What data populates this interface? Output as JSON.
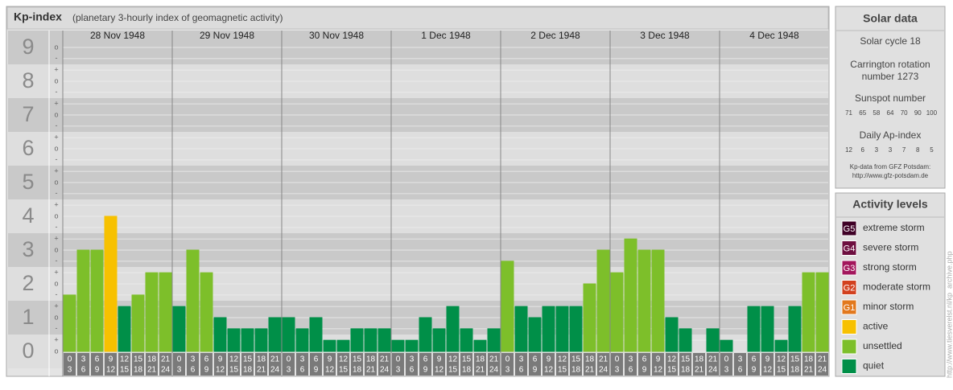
{
  "header": {
    "title": "Kp-index",
    "subtitle": "(planetary 3-hourly index of geomagnetic activity)"
  },
  "chart_data": {
    "type": "bar",
    "ylim": [
      -0.5,
      9.5
    ],
    "yticks": [
      0,
      1,
      2,
      3,
      4,
      5,
      6,
      7,
      8,
      9
    ],
    "yminorticks": [
      {
        "value": 0,
        "label": "o"
      },
      {
        "value": 0.33,
        "label": "+"
      },
      {
        "value": 0.67,
        "label": "-"
      },
      {
        "value": 1,
        "label": "o"
      },
      {
        "value": 1.33,
        "label": "+"
      },
      {
        "value": 1.67,
        "label": "-"
      },
      {
        "value": 2,
        "label": "o"
      },
      {
        "value": 2.33,
        "label": "+"
      },
      {
        "value": 2.67,
        "label": "-"
      },
      {
        "value": 3,
        "label": "o"
      },
      {
        "value": 3.33,
        "label": "+"
      },
      {
        "value": 3.67,
        "label": "-"
      },
      {
        "value": 4,
        "label": "o"
      },
      {
        "value": 4.33,
        "label": "+"
      },
      {
        "value": 4.67,
        "label": "-"
      },
      {
        "value": 5,
        "label": "o"
      },
      {
        "value": 5.33,
        "label": "+"
      },
      {
        "value": 5.67,
        "label": "-"
      },
      {
        "value": 6,
        "label": "o"
      },
      {
        "value": 6.33,
        "label": "+"
      },
      {
        "value": 6.67,
        "label": "-"
      },
      {
        "value": 7,
        "label": "o"
      },
      {
        "value": 7.33,
        "label": "+"
      },
      {
        "value": 7.67,
        "label": "-"
      },
      {
        "value": 8,
        "label": "o"
      },
      {
        "value": 8.33,
        "label": "+"
      },
      {
        "value": 8.67,
        "label": "-"
      },
      {
        "value": 9,
        "label": "o"
      }
    ],
    "hours": [
      [
        "0",
        "3"
      ],
      [
        "3",
        "6"
      ],
      [
        "6",
        "9"
      ],
      [
        "9",
        "12"
      ],
      [
        "12",
        "15"
      ],
      [
        "15",
        "18"
      ],
      [
        "18",
        "21"
      ],
      [
        "21",
        "24"
      ]
    ],
    "series": [
      {
        "name": "28 Nov 1948",
        "values": [
          1.67,
          3,
          3,
          4,
          1.33,
          1.67,
          2.33,
          2.33
        ],
        "colors": [
          "#7dbf2a",
          "#7dbf2a",
          "#7dbf2a",
          "#f7c100",
          "#008f48",
          "#7dbf2a",
          "#7dbf2a",
          "#7dbf2a"
        ]
      },
      {
        "name": "29 Nov 1948",
        "values": [
          1.33,
          3,
          2.33,
          1,
          0.67,
          0.67,
          0.67,
          1
        ],
        "colors": [
          "#008f48",
          "#7dbf2a",
          "#7dbf2a",
          "#008f48",
          "#008f48",
          "#008f48",
          "#008f48",
          "#008f48"
        ]
      },
      {
        "name": "30 Nov 1948",
        "values": [
          1,
          0.67,
          1,
          0.33,
          0.33,
          0.67,
          0.67,
          0.67
        ],
        "colors": [
          "#008f48",
          "#008f48",
          "#008f48",
          "#008f48",
          "#008f48",
          "#008f48",
          "#008f48",
          "#008f48"
        ]
      },
      {
        "name": "1 Dec 1948",
        "values": [
          0.33,
          0.33,
          1,
          0.67,
          1.33,
          0.67,
          0.33,
          0.67
        ],
        "colors": [
          "#008f48",
          "#008f48",
          "#008f48",
          "#008f48",
          "#008f48",
          "#008f48",
          "#008f48",
          "#008f48"
        ]
      },
      {
        "name": "2 Dec 1948",
        "values": [
          2.67,
          1.33,
          1,
          1.33,
          1.33,
          1.33,
          2,
          3
        ],
        "colors": [
          "#7dbf2a",
          "#008f48",
          "#008f48",
          "#008f48",
          "#008f48",
          "#008f48",
          "#7dbf2a",
          "#7dbf2a"
        ]
      },
      {
        "name": "3 Dec 1948",
        "values": [
          2.33,
          3.33,
          3,
          3,
          1,
          0.67,
          0,
          0.67
        ],
        "colors": [
          "#7dbf2a",
          "#7dbf2a",
          "#7dbf2a",
          "#7dbf2a",
          "#008f48",
          "#008f48",
          "#008f48",
          "#008f48"
        ]
      },
      {
        "name": "4 Dec 1948",
        "values": [
          0.33,
          0,
          1.33,
          1.33,
          0.33,
          1.33,
          2.33,
          2.33
        ],
        "colors": [
          "#008f48",
          "#008f48",
          "#008f48",
          "#008f48",
          "#008f48",
          "#008f48",
          "#7dbf2a",
          "#7dbf2a"
        ]
      }
    ]
  },
  "solar_data": {
    "title": "Solar data",
    "solar_cycle": "Solar cycle 18",
    "carrington": [
      "Carrington rotation",
      "number 1273"
    ],
    "sunspot_title": "Sunspot number",
    "sunspot_numbers": [
      71,
      65,
      58,
      64,
      70,
      90,
      100
    ],
    "ap_title": "Daily Ap-index",
    "ap_values": [
      12,
      6,
      3,
      3,
      7,
      8,
      5
    ],
    "source": [
      "Kp-data from GFZ Potsdam:",
      "http://www.gfz-potsdam.de"
    ]
  },
  "activity_levels": {
    "title": "Activity levels",
    "items": [
      {
        "badge": "G5",
        "label": "extreme storm",
        "color": "#3f0026"
      },
      {
        "badge": "G4",
        "label": "severe storm",
        "color": "#6e0f40"
      },
      {
        "badge": "G3",
        "label": "strong storm",
        "color": "#a3165c"
      },
      {
        "badge": "G2",
        "label": "moderate storm",
        "color": "#d2401e"
      },
      {
        "badge": "G1",
        "label": "minor storm",
        "color": "#e2781c"
      },
      {
        "badge": null,
        "label": "active",
        "color": "#f7c100"
      },
      {
        "badge": null,
        "label": "unsettled",
        "color": "#7dbf2a"
      },
      {
        "badge": null,
        "label": "quiet",
        "color": "#008f48"
      }
    ]
  },
  "credit": "http://www.tiesverelst.nl/kp_archive.php"
}
